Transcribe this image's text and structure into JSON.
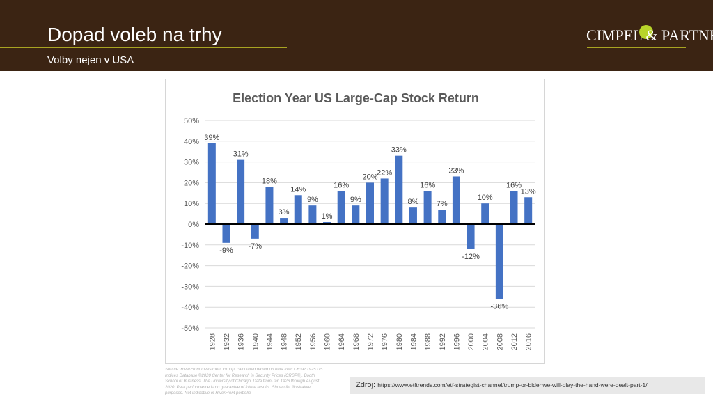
{
  "header": {
    "title": "Dopad voleb na trhy",
    "subtitle": "Volby nejen v USA",
    "logo_text": "CIMPEL & PARTNEŘI"
  },
  "source_note": "Source: RiverFront Investment Group, calculated based on data from CRSP 1925 US Indices Database ©2020 Center for Research in Security Prices (CRSP®), Booth School of Business, The University of Chicago. Data from Jan 1926 through August 2020. Past performance is no guarantee of future results. Shown for illustrative purposes. Not indicative of RiverFront portfolio",
  "source_link": {
    "label": "Zdroj:",
    "url_text": "https://www.etftrends.com/etf-strategist-channel/trump-or-bidenwe-will-play-the-hand-were-dealt-part-1/"
  },
  "chart_data": {
    "type": "bar",
    "title": "Election Year US Large-Cap Stock Return",
    "categories": [
      "1928",
      "1932",
      "1936",
      "1940",
      "1944",
      "1948",
      "1952",
      "1956",
      "1960",
      "1964",
      "1968",
      "1972",
      "1976",
      "1980",
      "1984",
      "1988",
      "1992",
      "1996",
      "2000",
      "2004",
      "2008",
      "2012",
      "2016"
    ],
    "values": [
      39,
      -9,
      31,
      -7,
      18,
      3,
      14,
      9,
      1,
      16,
      9,
      20,
      22,
      33,
      8,
      16,
      7,
      23,
      -12,
      10,
      -36,
      16,
      13
    ],
    "ylim": [
      -50,
      50
    ],
    "yticks": [
      50,
      40,
      30,
      20,
      10,
      0,
      -10,
      -20,
      -30,
      -40,
      -50
    ],
    "tick_suffix": "%",
    "grid": true,
    "bar_color": "#4472c4"
  }
}
